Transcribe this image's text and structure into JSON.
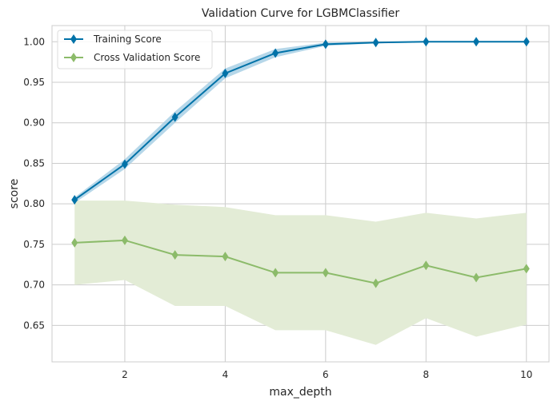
{
  "chart_data": {
    "type": "line",
    "title": "Validation Curve for LGBMClassifier",
    "xlabel": "max_depth",
    "ylabel": "score",
    "xlim": [
      0.55,
      10.45
    ],
    "ylim": [
      0.605,
      1.02
    ],
    "xticks": [
      2,
      4,
      6,
      8,
      10
    ],
    "yticks": [
      0.65,
      0.7,
      0.75,
      0.8,
      0.85,
      0.9,
      0.95,
      1.0
    ],
    "ytick_labels": [
      "0.65",
      "0.70",
      "0.75",
      "0.80",
      "0.85",
      "0.90",
      "0.95",
      "1.00"
    ],
    "grid": true,
    "legend_position": "top-left",
    "x": [
      1,
      2,
      3,
      4,
      5,
      6,
      7,
      8,
      9,
      10
    ],
    "series": [
      {
        "name": "Training Score",
        "color": "#0072a8",
        "band_color": "#9ecae1",
        "marker": "diamond",
        "values": [
          0.805,
          0.849,
          0.907,
          0.961,
          0.986,
          0.997,
          0.999,
          1.0,
          1.0,
          1.0
        ],
        "upper": [
          0.808,
          0.855,
          0.914,
          0.967,
          0.991,
          0.999,
          1.0,
          1.0,
          1.0,
          1.0
        ],
        "lower": [
          0.801,
          0.843,
          0.9,
          0.955,
          0.981,
          0.995,
          0.998,
          1.0,
          1.0,
          1.0
        ]
      },
      {
        "name": "Cross Validation Score",
        "color": "#8cbb6a",
        "band_color": "#e3ecd6",
        "marker": "diamond",
        "values": [
          0.752,
          0.755,
          0.737,
          0.735,
          0.715,
          0.715,
          0.702,
          0.724,
          0.709,
          0.72
        ],
        "upper": [
          0.804,
          0.804,
          0.799,
          0.796,
          0.786,
          0.786,
          0.778,
          0.789,
          0.782,
          0.789
        ],
        "lower": [
          0.7,
          0.706,
          0.674,
          0.674,
          0.644,
          0.644,
          0.626,
          0.659,
          0.636,
          0.651
        ]
      }
    ]
  }
}
